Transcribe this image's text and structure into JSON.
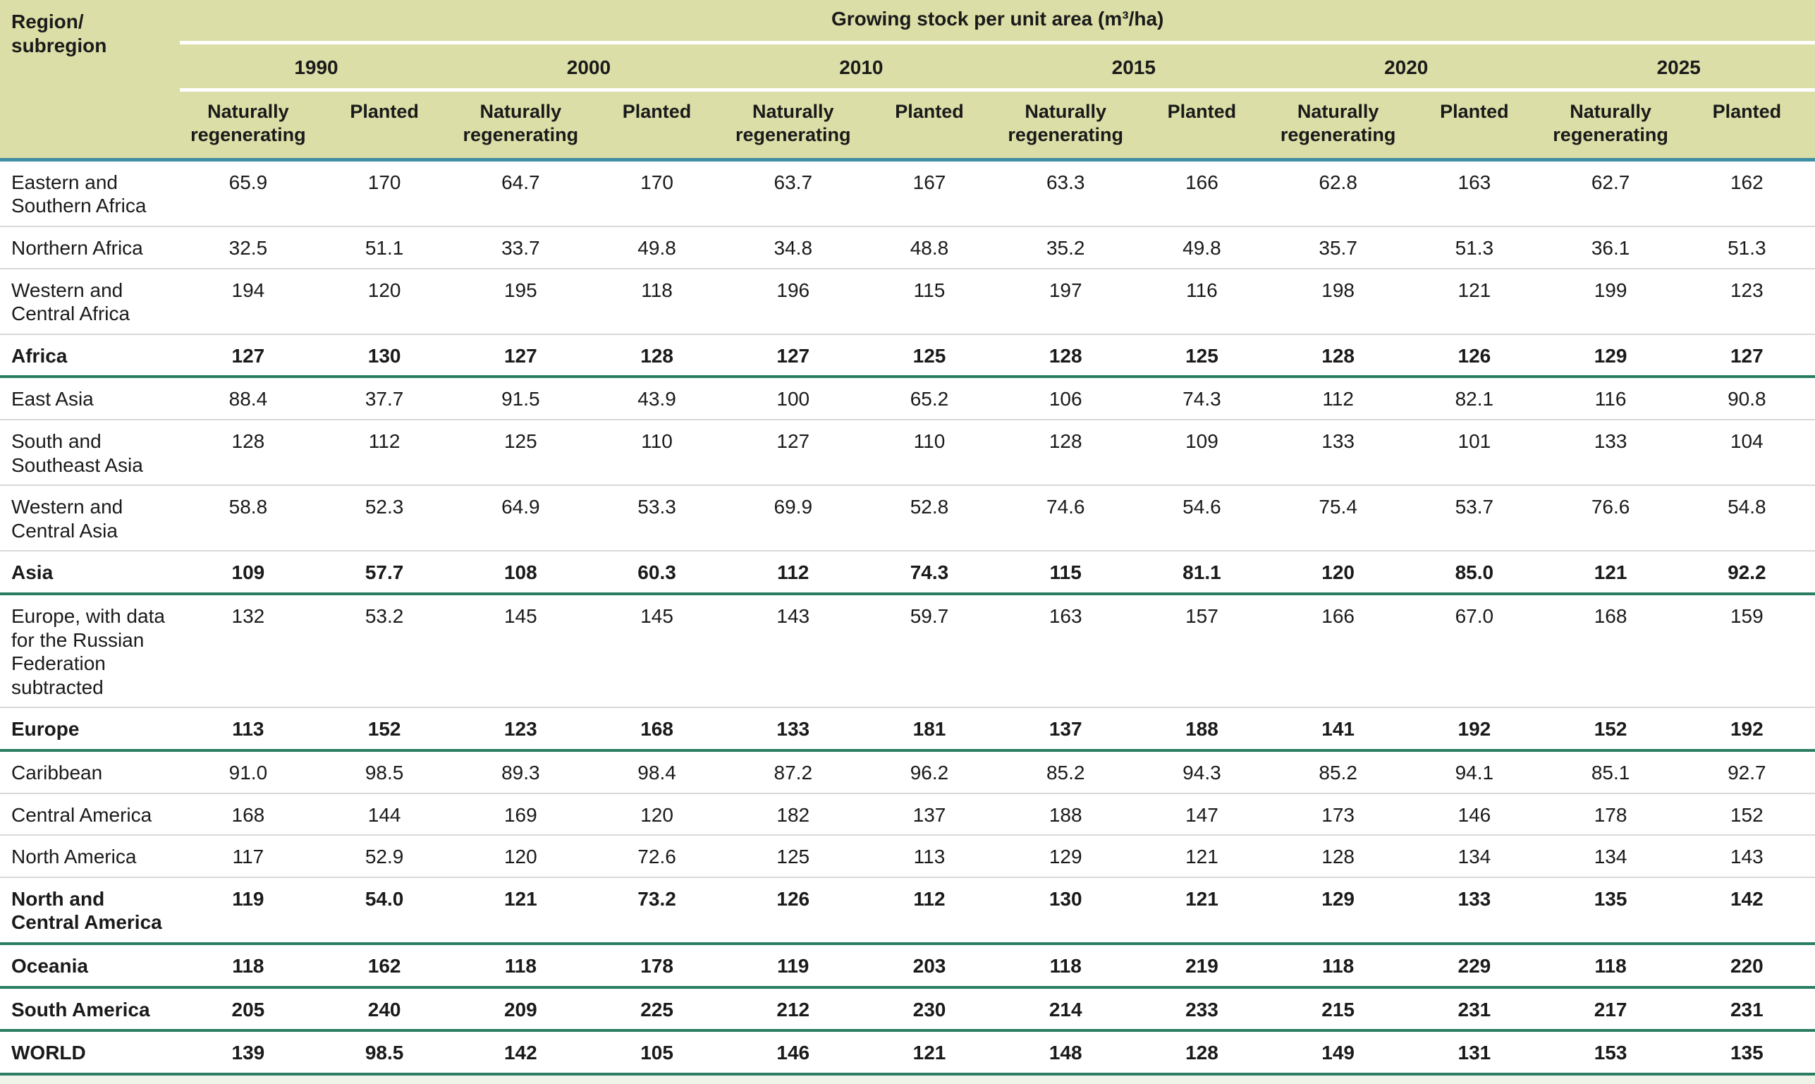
{
  "header": {
    "region_line1": "Region/",
    "region_line2": "subregion",
    "group_title": "Growing stock per unit area (m³/ha)",
    "years": [
      "1990",
      "2000",
      "2010",
      "2015",
      "2020",
      "2025"
    ],
    "subheaders": [
      "Naturally regenerating",
      "Planted"
    ]
  },
  "rows": [
    {
      "region": "Eastern and Southern Africa",
      "bold": false,
      "values": [
        "65.9",
        "170",
        "64.7",
        "170",
        "63.7",
        "167",
        "63.3",
        "166",
        "62.8",
        "163",
        "62.7",
        "162"
      ]
    },
    {
      "region": "Northern Africa",
      "bold": false,
      "values": [
        "32.5",
        "51.1",
        "33.7",
        "49.8",
        "34.8",
        "48.8",
        "35.2",
        "49.8",
        "35.7",
        "51.3",
        "36.1",
        "51.3"
      ]
    },
    {
      "region": "Western and Central Africa",
      "bold": false,
      "values": [
        "194",
        "120",
        "195",
        "118",
        "196",
        "115",
        "197",
        "116",
        "198",
        "121",
        "199",
        "123"
      ]
    },
    {
      "region": "Africa",
      "bold": true,
      "values": [
        "127",
        "130",
        "127",
        "128",
        "127",
        "125",
        "128",
        "125",
        "128",
        "126",
        "129",
        "127"
      ]
    },
    {
      "region": "East Asia",
      "bold": false,
      "values": [
        "88.4",
        "37.7",
        "91.5",
        "43.9",
        "100",
        "65.2",
        "106",
        "74.3",
        "112",
        "82.1",
        "116",
        "90.8"
      ]
    },
    {
      "region": "South and Southeast Asia",
      "bold": false,
      "values": [
        "128",
        "112",
        "125",
        "110",
        "127",
        "110",
        "128",
        "109",
        "133",
        "101",
        "133",
        "104"
      ]
    },
    {
      "region": "Western and Central Asia",
      "bold": false,
      "values": [
        "58.8",
        "52.3",
        "64.9",
        "53.3",
        "69.9",
        "52.8",
        "74.6",
        "54.6",
        "75.4",
        "53.7",
        "76.6",
        "54.8"
      ]
    },
    {
      "region": "Asia",
      "bold": true,
      "values": [
        "109",
        "57.7",
        "108",
        "60.3",
        "112",
        "74.3",
        "115",
        "81.1",
        "120",
        "85.0",
        "121",
        "92.2"
      ]
    },
    {
      "region": "Europe, with data for the Russian Federation subtracted",
      "bold": false,
      "values": [
        "132",
        "53.2",
        "145",
        "145",
        "143",
        "59.7",
        "163",
        "157",
        "166",
        "67.0",
        "168",
        "159"
      ]
    },
    {
      "region": "Europe",
      "bold": true,
      "values": [
        "113",
        "152",
        "123",
        "168",
        "133",
        "181",
        "137",
        "188",
        "141",
        "192",
        "152",
        "192"
      ]
    },
    {
      "region": "Caribbean",
      "bold": false,
      "values": [
        "91.0",
        "98.5",
        "89.3",
        "98.4",
        "87.2",
        "96.2",
        "85.2",
        "94.3",
        "85.2",
        "94.1",
        "85.1",
        "92.7"
      ]
    },
    {
      "region": "Central America",
      "bold": false,
      "values": [
        "168",
        "144",
        "169",
        "120",
        "182",
        "137",
        "188",
        "147",
        "173",
        "146",
        "178",
        "152"
      ]
    },
    {
      "region": "North America",
      "bold": false,
      "values": [
        "117",
        "52.9",
        "120",
        "72.6",
        "125",
        "113",
        "129",
        "121",
        "128",
        "134",
        "134",
        "143"
      ]
    },
    {
      "region": "North and Central America",
      "bold": true,
      "values": [
        "119",
        "54.0",
        "121",
        "73.2",
        "126",
        "112",
        "130",
        "121",
        "129",
        "133",
        "135",
        "142"
      ]
    },
    {
      "region": "Oceania",
      "bold": true,
      "values": [
        "118",
        "162",
        "118",
        "178",
        "119",
        "203",
        "118",
        "219",
        "118",
        "229",
        "118",
        "220"
      ]
    },
    {
      "region": "South America",
      "bold": true,
      "values": [
        "205",
        "240",
        "209",
        "225",
        "212",
        "230",
        "214",
        "233",
        "215",
        "231",
        "217",
        "231"
      ]
    },
    {
      "region": "WORLD",
      "bold": true,
      "values": [
        "139",
        "98.5",
        "142",
        "105",
        "146",
        "121",
        "148",
        "128",
        "149",
        "131",
        "153",
        "135"
      ]
    }
  ],
  "colors": {
    "header_bg": "#dbdea6",
    "header_rule": "#3e8fa3",
    "total_rule": "#2a7d62",
    "row_rule": "#d9d9d9",
    "page_bottom_strip": "#f0f3ea"
  }
}
